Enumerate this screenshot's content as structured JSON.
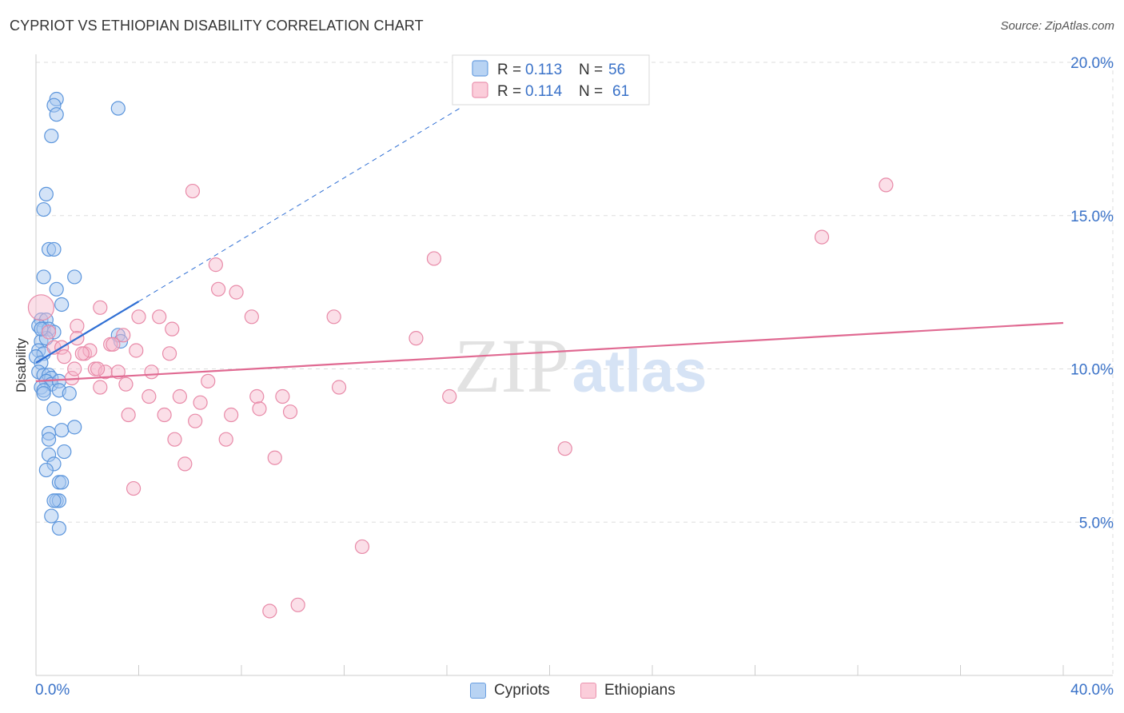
{
  "title": "CYPRIOT VS ETHIOPIAN DISABILITY CORRELATION CHART",
  "source": "Source: ZipAtlas.com",
  "watermark": {
    "zip": "ZIP",
    "atlas": "atlas"
  },
  "colors": {
    "cypriot_fill": "#a8c8f0",
    "cypriot_stroke": "#5b95dc",
    "cypriot_line": "#2f6fd4",
    "ethiopian_fill": "#f7b8cb",
    "ethiopian_stroke": "#e88aa8",
    "ethiopian_line": "#e06a92",
    "tick_label": "#3a72c8",
    "grid": "#dddddd"
  },
  "legend_top": [
    {
      "r_label": "R =",
      "r_value": "0.113",
      "n_label": "N =",
      "n_value": "56"
    },
    {
      "r_label": "R =",
      "r_value": "0.114",
      "n_label": "N =",
      "n_value": "61"
    }
  ],
  "legend_bottom": [
    "Cypriots",
    "Ethiopians"
  ],
  "chart_data": {
    "type": "scatter",
    "title": "CYPRIOT VS ETHIOPIAN DISABILITY CORRELATION CHART",
    "xlabel": "",
    "ylabel": "Disability",
    "xlim": [
      0,
      40
    ],
    "ylim": [
      0,
      20
    ],
    "x_tick_labels": [
      "0.0%",
      "40.0%"
    ],
    "y_ticks": [
      5,
      10,
      15,
      20
    ],
    "y_tick_labels": [
      "5.0%",
      "10.0%",
      "15.0%",
      "20.0%"
    ],
    "grid": true,
    "legend_placement": "top-center",
    "series": [
      {
        "name": "Cypriots",
        "r": 0.113,
        "n": 56,
        "trend_solid": [
          [
            0.0,
            10.2
          ],
          [
            4.0,
            12.2
          ]
        ],
        "trend_dashed": [
          [
            4.0,
            12.2
          ],
          [
            16.5,
            18.5
          ]
        ],
        "points": [
          [
            0.8,
            18.8
          ],
          [
            0.7,
            18.6
          ],
          [
            0.8,
            18.3
          ],
          [
            3.2,
            18.5
          ],
          [
            0.6,
            17.6
          ],
          [
            0.4,
            15.7
          ],
          [
            0.3,
            15.2
          ],
          [
            0.5,
            13.9
          ],
          [
            0.7,
            13.9
          ],
          [
            0.3,
            13.0
          ],
          [
            1.5,
            13.0
          ],
          [
            0.8,
            12.6
          ],
          [
            1.0,
            12.1
          ],
          [
            0.2,
            11.6
          ],
          [
            0.4,
            11.6
          ],
          [
            0.1,
            11.4
          ],
          [
            0.3,
            11.3
          ],
          [
            0.5,
            11.3
          ],
          [
            0.7,
            11.2
          ],
          [
            3.2,
            11.1
          ],
          [
            0.2,
            10.9
          ],
          [
            0.1,
            10.6
          ],
          [
            0.3,
            10.5
          ],
          [
            0.0,
            10.4
          ],
          [
            0.2,
            10.2
          ],
          [
            0.1,
            9.9
          ],
          [
            0.3,
            9.8
          ],
          [
            0.5,
            9.8
          ],
          [
            0.6,
            9.7
          ],
          [
            0.4,
            9.6
          ],
          [
            0.6,
            9.5
          ],
          [
            0.9,
            9.6
          ],
          [
            0.2,
            9.4
          ],
          [
            0.3,
            9.3
          ],
          [
            0.9,
            9.3
          ],
          [
            1.3,
            9.2
          ],
          [
            0.3,
            9.2
          ],
          [
            0.7,
            8.7
          ],
          [
            1.0,
            8.0
          ],
          [
            1.5,
            8.1
          ],
          [
            0.5,
            7.9
          ],
          [
            0.5,
            7.7
          ],
          [
            1.1,
            7.3
          ],
          [
            0.5,
            7.2
          ],
          [
            0.7,
            6.9
          ],
          [
            0.4,
            6.7
          ],
          [
            0.9,
            6.3
          ],
          [
            1.0,
            6.3
          ],
          [
            0.8,
            5.7
          ],
          [
            0.9,
            5.7
          ],
          [
            0.7,
            5.7
          ],
          [
            0.6,
            5.2
          ],
          [
            0.9,
            4.8
          ],
          [
            0.4,
            11.0
          ],
          [
            0.2,
            11.3
          ],
          [
            3.3,
            10.9
          ]
        ]
      },
      {
        "name": "Ethiopians",
        "r": 0.114,
        "n": 61,
        "trend_solid": [
          [
            0.0,
            9.6
          ],
          [
            40.0,
            11.5
          ]
        ],
        "points": [
          [
            0.2,
            12.0
          ],
          [
            0.5,
            11.2
          ],
          [
            0.7,
            10.7
          ],
          [
            1.0,
            10.7
          ],
          [
            1.6,
            11.4
          ],
          [
            1.6,
            11.0
          ],
          [
            1.9,
            10.5
          ],
          [
            2.1,
            10.6
          ],
          [
            2.3,
            10.0
          ],
          [
            2.5,
            9.4
          ],
          [
            2.5,
            12.0
          ],
          [
            1.4,
            9.7
          ],
          [
            1.5,
            10.0
          ],
          [
            2.7,
            9.9
          ],
          [
            2.9,
            10.8
          ],
          [
            3.0,
            10.8
          ],
          [
            3.4,
            11.1
          ],
          [
            3.2,
            9.9
          ],
          [
            3.5,
            9.5
          ],
          [
            3.6,
            8.5
          ],
          [
            3.9,
            10.6
          ],
          [
            4.0,
            11.7
          ],
          [
            4.4,
            9.1
          ],
          [
            4.5,
            9.9
          ],
          [
            4.8,
            11.7
          ],
          [
            5.0,
            8.5
          ],
          [
            5.2,
            10.5
          ],
          [
            5.3,
            11.3
          ],
          [
            5.4,
            7.7
          ],
          [
            5.6,
            9.1
          ],
          [
            5.8,
            6.9
          ],
          [
            6.1,
            15.8
          ],
          [
            6.2,
            8.3
          ],
          [
            6.4,
            8.9
          ],
          [
            6.7,
            9.6
          ],
          [
            7.0,
            13.4
          ],
          [
            7.1,
            12.6
          ],
          [
            7.4,
            7.7
          ],
          [
            7.6,
            8.5
          ],
          [
            7.8,
            12.5
          ],
          [
            8.4,
            11.7
          ],
          [
            8.6,
            9.1
          ],
          [
            8.7,
            8.7
          ],
          [
            9.1,
            2.1
          ],
          [
            9.3,
            7.1
          ],
          [
            9.6,
            9.1
          ],
          [
            9.9,
            8.6
          ],
          [
            10.2,
            2.3
          ],
          [
            11.6,
            11.7
          ],
          [
            11.8,
            9.4
          ],
          [
            12.7,
            4.2
          ],
          [
            14.8,
            11.0
          ],
          [
            15.5,
            13.6
          ],
          [
            16.1,
            9.1
          ],
          [
            20.6,
            7.4
          ],
          [
            30.6,
            14.3
          ],
          [
            33.1,
            16.0
          ],
          [
            3.8,
            6.1
          ],
          [
            2.4,
            10.0
          ],
          [
            1.1,
            10.4
          ],
          [
            1.8,
            10.5
          ]
        ]
      }
    ]
  }
}
